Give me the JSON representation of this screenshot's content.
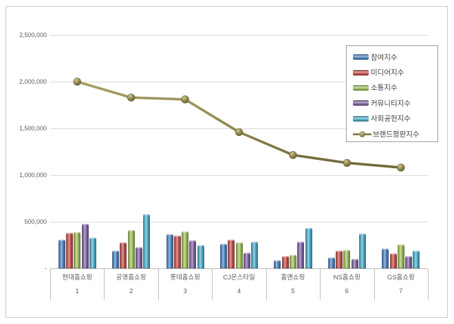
{
  "chart_data": {
    "type": "combo: grouped 3D bar + line",
    "title": "",
    "categories": [
      "현대홈쇼핑",
      "공영홈쇼핑",
      "롯데홈쇼핑",
      "CJ온스타일",
      "홈앤쇼핑",
      "NS홈쇼핑",
      "GS홈쇼핑"
    ],
    "category_numbers": [
      "1",
      "2",
      "3",
      "4",
      "5",
      "6",
      "7"
    ],
    "bar_series": [
      {
        "name": "참여지수",
        "color": "#4F81BD",
        "values": [
          310000,
          195000,
          370000,
          265000,
          90000,
          115000,
          210000
        ]
      },
      {
        "name": "미디어지수",
        "color": "#C0504D",
        "values": [
          380000,
          280000,
          355000,
          310000,
          130000,
          195000,
          165000
        ]
      },
      {
        "name": "소통지수",
        "color": "#9BBB59",
        "values": [
          390000,
          410000,
          400000,
          280000,
          150000,
          200000,
          260000
        ]
      },
      {
        "name": "커뮤니티지수",
        "color": "#8064A2",
        "values": [
          480000,
          225000,
          300000,
          170000,
          285000,
          105000,
          130000
        ]
      },
      {
        "name": "사회공헌지수",
        "color": "#4BACC6",
        "values": [
          330000,
          580000,
          250000,
          290000,
          435000,
          375000,
          190000
        ]
      }
    ],
    "line_series": {
      "name": "브랜드평판지수",
      "color": "#948A54",
      "values": [
        2000000,
        1830000,
        1810000,
        1460000,
        1215000,
        1130000,
        1080000
      ]
    },
    "y_axis": {
      "ticks": [
        {
          "label": "2,500,000",
          "value": 2500000
        },
        {
          "label": "2,000,000",
          "value": 2000000
        },
        {
          "label": "1,500,000",
          "value": 1500000
        },
        {
          "label": "1,000,000",
          "value": 1000000
        },
        {
          "label": "500,000",
          "value": 500000
        },
        {
          "label": "-",
          "value": 0
        }
      ]
    },
    "ylim": [
      0,
      2650000
    ],
    "grid": "horizontal gridlines every 500,000",
    "legend_position": "inside top-right"
  }
}
